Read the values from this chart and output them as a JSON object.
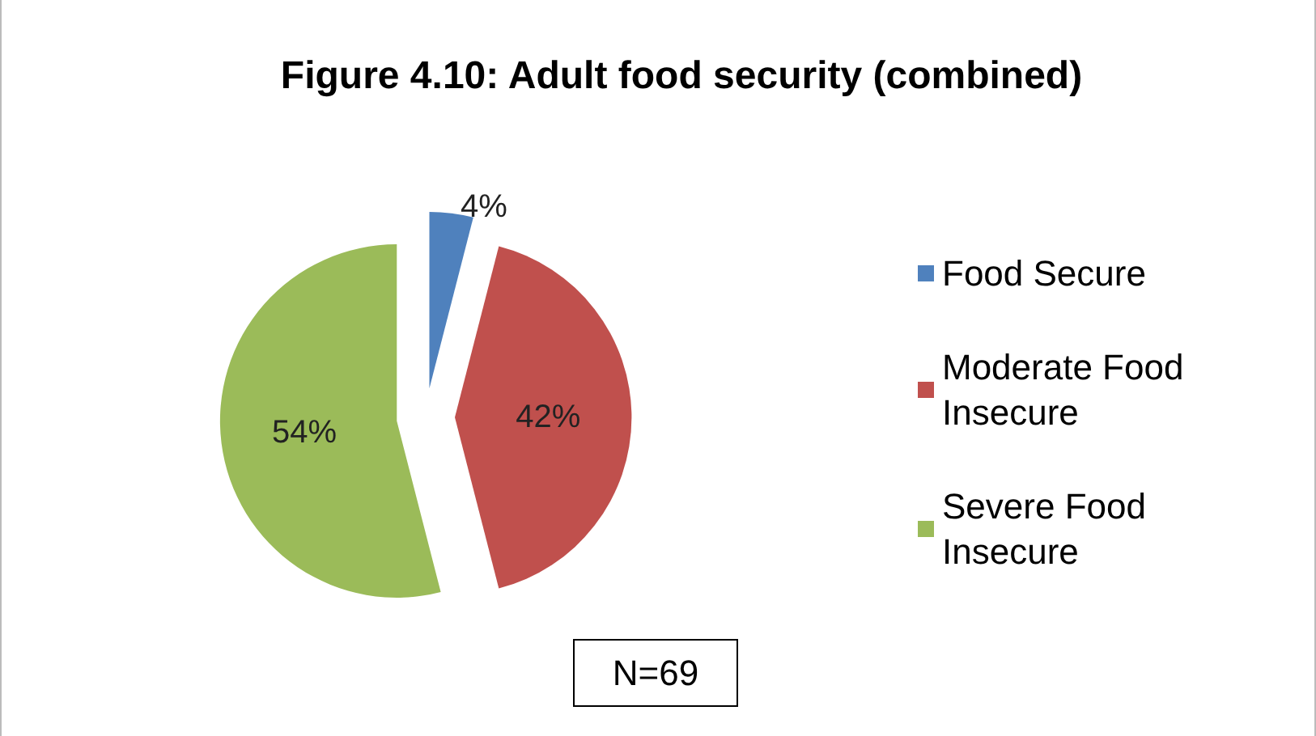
{
  "chart_data": {
    "type": "pie",
    "title": "Figure 4.10: Adult food security (combined)",
    "categories": [
      "Food Secure",
      "Moderate Food Insecure",
      "Severe Food Insecure"
    ],
    "values": [
      4,
      42,
      54
    ],
    "value_labels": [
      "4%",
      "42%",
      "54%"
    ],
    "colors": [
      "#4f81bd",
      "#c0504d",
      "#9bbb59"
    ],
    "legend": "right",
    "annotations": [
      "N=69"
    ]
  }
}
